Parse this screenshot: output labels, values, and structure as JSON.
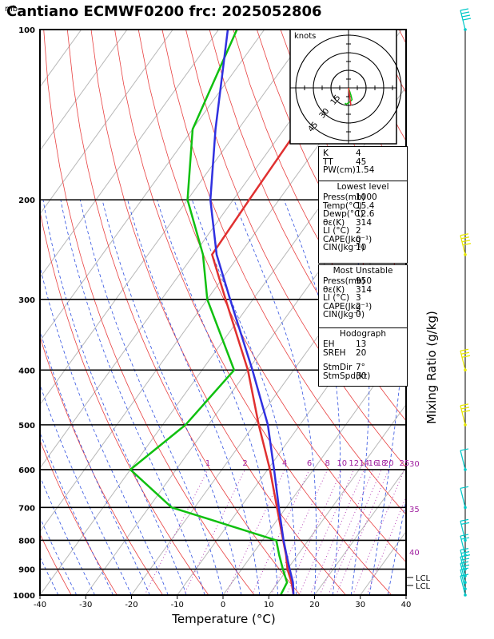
{
  "chart_data": {
    "type": "skew-t",
    "title": "Cantiano ECMWF0200 frc: 2025052806",
    "y_unit": "mb",
    "xlabel": "Temperature (°C)",
    "right_label": "Mixing Ratio (g/kg)",
    "x_ticks": [
      -40,
      -30,
      -20,
      -10,
      0,
      10,
      20,
      30,
      40
    ],
    "y_ticks": [
      100,
      200,
      300,
      400,
      500,
      600,
      700,
      800,
      900,
      1000
    ],
    "xlim": [
      -40,
      40
    ],
    "ylim": [
      1000,
      100
    ],
    "mixing_ratio_labels": [
      "1",
      "2",
      "4",
      "6",
      "8",
      "10",
      "12",
      "14",
      "16",
      "18",
      "20",
      "25",
      "30"
    ],
    "dry_adiabat_right_labels": [
      "30",
      "35",
      "40"
    ],
    "lcl_labels": [
      "LCL",
      "LCL"
    ],
    "series": [
      {
        "name": "temperature",
        "color": "#e03030",
        "points": [
          [
            1000,
            15.4
          ],
          [
            950,
            13.0
          ],
          [
            900,
            10.0
          ],
          [
            850,
            7.5
          ],
          [
            800,
            4.5
          ],
          [
            700,
            -2.0
          ],
          [
            600,
            -9.5
          ],
          [
            500,
            -19.0
          ],
          [
            400,
            -30.0
          ],
          [
            300,
            -46.0
          ],
          [
            250,
            -56.0
          ],
          [
            200,
            -56.5
          ],
          [
            150,
            -57.0
          ],
          [
            100,
            -58.0
          ]
        ]
      },
      {
        "name": "dewpoint",
        "color": "#10c010",
        "points": [
          [
            1000,
            12.6
          ],
          [
            950,
            12.0
          ],
          [
            900,
            9.0
          ],
          [
            850,
            6.0
          ],
          [
            800,
            3.0
          ],
          [
            700,
            -25.0
          ],
          [
            600,
            -40.0
          ],
          [
            500,
            -35.0
          ],
          [
            400,
            -33.0
          ],
          [
            300,
            -50.0
          ],
          [
            250,
            -58.0
          ],
          [
            200,
            -70.0
          ],
          [
            150,
            -80.0
          ],
          [
            100,
            -86.0
          ]
        ]
      },
      {
        "name": "parcel",
        "color": "#3030e0",
        "points": [
          [
            1000,
            15.4
          ],
          [
            950,
            13.3
          ],
          [
            900,
            10.5
          ],
          [
            850,
            7.6
          ],
          [
            800,
            4.6
          ],
          [
            700,
            -1.6
          ],
          [
            600,
            -8.6
          ],
          [
            500,
            -17.0
          ],
          [
            400,
            -29.0
          ],
          [
            300,
            -45.0
          ],
          [
            250,
            -55.0
          ],
          [
            200,
            -65.0
          ],
          [
            150,
            -75.0
          ],
          [
            100,
            -88.0
          ]
        ]
      }
    ],
    "hodograph": {
      "label": "knots",
      "ring_labels": [
        "15",
        "30",
        "45"
      ],
      "points": [
        [
          0,
          0
        ],
        [
          2,
          -6
        ],
        [
          3,
          -10
        ],
        [
          1,
          -12
        ],
        [
          -2,
          -14
        ],
        [
          -3,
          -13
        ]
      ]
    },
    "wind_barbs": [
      {
        "p": 1000,
        "speed": 5,
        "color": "#00c8c8"
      },
      {
        "p": 975,
        "speed": 10,
        "color": "#00c8c8"
      },
      {
        "p": 950,
        "speed": 15,
        "color": "#00c8c8"
      },
      {
        "p": 925,
        "speed": 20,
        "color": "#00c8c8"
      },
      {
        "p": 900,
        "speed": 25,
        "color": "#00c8c8"
      },
      {
        "p": 850,
        "speed": 20,
        "color": "#00c8c8"
      },
      {
        "p": 800,
        "speed": 15,
        "color": "#00c8c8"
      },
      {
        "p": 700,
        "speed": 10,
        "color": "#00c8c8"
      },
      {
        "p": 600,
        "speed": 10,
        "color": "#00c8c8"
      },
      {
        "p": 500,
        "speed": 30,
        "color": "#e8e800"
      },
      {
        "p": 400,
        "speed": 25,
        "color": "#e8e800"
      },
      {
        "p": 250,
        "speed": 35,
        "color": "#e8e800"
      },
      {
        "p": 100,
        "speed": 40,
        "color": "#00c8c8"
      }
    ]
  },
  "indices": {
    "k_label": "K",
    "k_value": "4",
    "tt_label": "TT",
    "tt_value": "45",
    "pw_label": "PW(cm)",
    "pw_value": "1.54"
  },
  "lowest_level": {
    "header": "Lowest level",
    "rows": [
      {
        "k": "Press(mb)",
        "v": "1000"
      },
      {
        "k": "Temp(°C)",
        "v": "15.4"
      },
      {
        "k": "Dewp(°C)",
        "v": "12.6"
      },
      {
        "k": "θε(K)",
        "v": "314"
      },
      {
        "k": "LI (°C)",
        "v": "2"
      },
      {
        "k": "CAPE(Jkg⁻¹)",
        "v": "0"
      },
      {
        "k": "CIN(Jkg⁻¹)",
        "v": "10"
      }
    ]
  },
  "most_unstable": {
    "header": "Most Unstable",
    "rows": [
      {
        "k": "Press(mb)",
        "v": "950"
      },
      {
        "k": "θε(K)",
        "v": "314"
      },
      {
        "k": "LI (°C)",
        "v": "3"
      },
      {
        "k": "CAPE(Jkg⁻¹)",
        "v": "2"
      },
      {
        "k": "CIN(Jkg⁻¹)",
        "v": "0"
      }
    ]
  },
  "hodograph_stats": {
    "header": "Hodograph",
    "rows": [
      {
        "k": "EH",
        "v": "13"
      },
      {
        "k": "SREH",
        "v": "20"
      },
      {
        "k": "StmDir",
        "v": "7°"
      },
      {
        "k": "StmSpd(kt)",
        "v": "30"
      }
    ]
  }
}
